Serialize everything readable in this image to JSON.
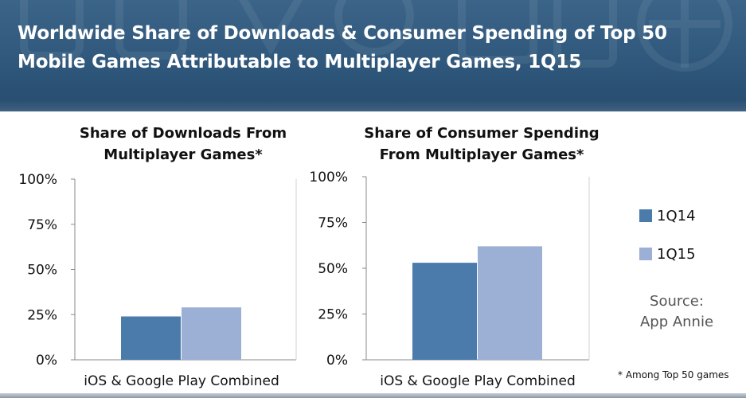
{
  "header": {
    "title_line1": "Worldwide Share of Downloads & Consumer Spending of Top 50",
    "title_line2": "Mobile Games Attributable to Multiplayer Games, 1Q15"
  },
  "colors": {
    "series_1q14": "#4a7bab",
    "series_1q15": "#9bb0d4",
    "banner": "#2f587c"
  },
  "chart_data": [
    {
      "type": "bar",
      "title_line1": "Share of Downloads From",
      "title_line2": "Multiplayer Games*",
      "categories": [
        "iOS & Google Play Combined"
      ],
      "series": [
        {
          "name": "1Q14",
          "values": [
            24
          ]
        },
        {
          "name": "1Q15",
          "values": [
            29
          ]
        }
      ],
      "y_ticks": [
        "0%",
        "25%",
        "50%",
        "75%",
        "100%"
      ],
      "ylim": [
        0,
        100
      ],
      "grid": false
    },
    {
      "type": "bar",
      "title_line1": "Share of Consumer Spending",
      "title_line2": "From Multiplayer Games*",
      "categories": [
        "iOS & Google Play Combined"
      ],
      "series": [
        {
          "name": "1Q14",
          "values": [
            53
          ]
        },
        {
          "name": "1Q15",
          "values": [
            62
          ]
        }
      ],
      "y_ticks": [
        "0%",
        "25%",
        "50%",
        "75%",
        "100%"
      ],
      "ylim": [
        0,
        100
      ],
      "grid": false
    }
  ],
  "legend": {
    "items": [
      {
        "label": "1Q14"
      },
      {
        "label": "1Q15"
      }
    ],
    "placement": "right"
  },
  "source": {
    "line1": "Source:",
    "line2": "App Annie"
  },
  "footnote": "* Among Top 50 games"
}
